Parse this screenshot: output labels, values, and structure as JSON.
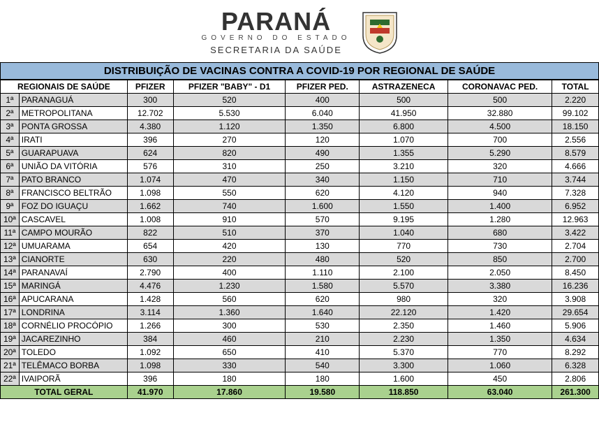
{
  "header": {
    "brand_main": "PARANÁ",
    "brand_sub": "GOVERNO DO ESTADO",
    "brand_secretaria": "SECRETARIA DA SAÚDE"
  },
  "title": "DISTRIBUIÇÃO DE VACINAS CONTRA A COVID-19 POR REGIONAL DE SAÚDE",
  "columns": {
    "regional": "REGIONAIS DE SAÚDE",
    "pfizer": "PFIZER",
    "pfizer_baby": "PFIZER \"BABY\" - D1",
    "pfizer_ped": "PFIZER PED.",
    "astrazeneca": "ASTRAZENECA",
    "coronavac_ped": "CORONAVAC PED.",
    "total": "TOTAL"
  },
  "rows": [
    {
      "idx": "1ª",
      "name": "PARANAGUÁ",
      "pfizer": "300",
      "pfizer_baby": "520",
      "pfizer_ped": "400",
      "astrazeneca": "500",
      "coronavac_ped": "500",
      "total": "2.220"
    },
    {
      "idx": "2ª",
      "name": "METROPOLITANA",
      "pfizer": "12.702",
      "pfizer_baby": "5.530",
      "pfizer_ped": "6.040",
      "astrazeneca": "41.950",
      "coronavac_ped": "32.880",
      "total": "99.102"
    },
    {
      "idx": "3ª",
      "name": "PONTA GROSSA",
      "pfizer": "4.380",
      "pfizer_baby": "1.120",
      "pfizer_ped": "1.350",
      "astrazeneca": "6.800",
      "coronavac_ped": "4.500",
      "total": "18.150"
    },
    {
      "idx": "4ª",
      "name": "IRATI",
      "pfizer": "396",
      "pfizer_baby": "270",
      "pfizer_ped": "120",
      "astrazeneca": "1.070",
      "coronavac_ped": "700",
      "total": "2.556"
    },
    {
      "idx": "5ª",
      "name": "GUARAPUAVA",
      "pfizer": "624",
      "pfizer_baby": "820",
      "pfizer_ped": "490",
      "astrazeneca": "1.355",
      "coronavac_ped": "5.290",
      "total": "8.579"
    },
    {
      "idx": "6ª",
      "name": "UNIÃO DA VITÓRIA",
      "pfizer": "576",
      "pfizer_baby": "310",
      "pfizer_ped": "250",
      "astrazeneca": "3.210",
      "coronavac_ped": "320",
      "total": "4.666"
    },
    {
      "idx": "7ª",
      "name": "PATO BRANCO",
      "pfizer": "1.074",
      "pfizer_baby": "470",
      "pfizer_ped": "340",
      "astrazeneca": "1.150",
      "coronavac_ped": "710",
      "total": "3.744"
    },
    {
      "idx": "8ª",
      "name": "FRANCISCO BELTRÃO",
      "pfizer": "1.098",
      "pfizer_baby": "550",
      "pfizer_ped": "620",
      "astrazeneca": "4.120",
      "coronavac_ped": "940",
      "total": "7.328"
    },
    {
      "idx": "9ª",
      "name": "FOZ DO IGUAÇU",
      "pfizer": "1.662",
      "pfizer_baby": "740",
      "pfizer_ped": "1.600",
      "astrazeneca": "1.550",
      "coronavac_ped": "1.400",
      "total": "6.952"
    },
    {
      "idx": "10ª",
      "name": "CASCAVEL",
      "pfizer": "1.008",
      "pfizer_baby": "910",
      "pfizer_ped": "570",
      "astrazeneca": "9.195",
      "coronavac_ped": "1.280",
      "total": "12.963"
    },
    {
      "idx": "11ª",
      "name": "CAMPO MOURÃO",
      "pfizer": "822",
      "pfizer_baby": "510",
      "pfizer_ped": "370",
      "astrazeneca": "1.040",
      "coronavac_ped": "680",
      "total": "3.422"
    },
    {
      "idx": "12ª",
      "name": "UMUARAMA",
      "pfizer": "654",
      "pfizer_baby": "420",
      "pfizer_ped": "130",
      "astrazeneca": "770",
      "coronavac_ped": "730",
      "total": "2.704"
    },
    {
      "idx": "13ª",
      "name": "CIANORTE",
      "pfizer": "630",
      "pfizer_baby": "220",
      "pfizer_ped": "480",
      "astrazeneca": "520",
      "coronavac_ped": "850",
      "total": "2.700"
    },
    {
      "idx": "14ª",
      "name": "PARANAVAÍ",
      "pfizer": "2.790",
      "pfizer_baby": "400",
      "pfizer_ped": "1.110",
      "astrazeneca": "2.100",
      "coronavac_ped": "2.050",
      "total": "8.450"
    },
    {
      "idx": "15ª",
      "name": "MARINGÁ",
      "pfizer": "4.476",
      "pfizer_baby": "1.230",
      "pfizer_ped": "1.580",
      "astrazeneca": "5.570",
      "coronavac_ped": "3.380",
      "total": "16.236"
    },
    {
      "idx": "16ª",
      "name": "APUCARANA",
      "pfizer": "1.428",
      "pfizer_baby": "560",
      "pfizer_ped": "620",
      "astrazeneca": "980",
      "coronavac_ped": "320",
      "total": "3.908"
    },
    {
      "idx": "17ª",
      "name": "LONDRINA",
      "pfizer": "3.114",
      "pfizer_baby": "1.360",
      "pfizer_ped": "1.640",
      "astrazeneca": "22.120",
      "coronavac_ped": "1.420",
      "total": "29.654"
    },
    {
      "idx": "18ª",
      "name": "CORNÉLIO PROCÓPIO",
      "pfizer": "1.266",
      "pfizer_baby": "300",
      "pfizer_ped": "530",
      "astrazeneca": "2.350",
      "coronavac_ped": "1.460",
      "total": "5.906"
    },
    {
      "idx": "19ª",
      "name": "JACAREZINHO",
      "pfizer": "384",
      "pfizer_baby": "460",
      "pfizer_ped": "210",
      "astrazeneca": "2.230",
      "coronavac_ped": "1.350",
      "total": "4.634"
    },
    {
      "idx": "20ª",
      "name": "TOLEDO",
      "pfizer": "1.092",
      "pfizer_baby": "650",
      "pfizer_ped": "410",
      "astrazeneca": "5.370",
      "coronavac_ped": "770",
      "total": "8.292"
    },
    {
      "idx": "21ª",
      "name": "TELÊMACO BORBA",
      "pfizer": "1.098",
      "pfizer_baby": "330",
      "pfizer_ped": "540",
      "astrazeneca": "3.300",
      "coronavac_ped": "1.060",
      "total": "6.328"
    },
    {
      "idx": "22ª",
      "name": "IVAIPORÃ",
      "pfizer": "396",
      "pfizer_baby": "180",
      "pfizer_ped": "180",
      "astrazeneca": "1.600",
      "coronavac_ped": "450",
      "total": "2.806"
    }
  ],
  "total": {
    "label": "TOTAL GERAL",
    "pfizer": "41.970",
    "pfizer_baby": "17.860",
    "pfizer_ped": "19.580",
    "astrazeneca": "118.850",
    "coronavac_ped": "63.040",
    "total": "261.300"
  },
  "colors": {
    "title_bg": "#99badb",
    "row_alt_bg": "#d9d9d9",
    "total_bg": "#a9d18e",
    "border": "#000000"
  }
}
